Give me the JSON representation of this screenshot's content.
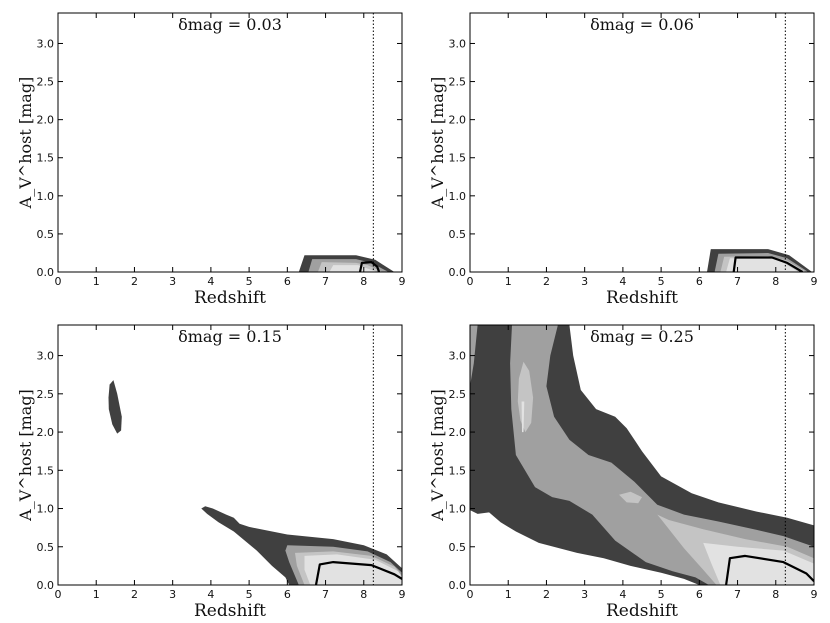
{
  "colors": {
    "level1": "#404040",
    "level2": "#a0a0a0",
    "level3": "#c4c4c4",
    "level4": "#e2e2e2",
    "contour": "#000000"
  },
  "chart_data": [
    {
      "type": "contour",
      "title": "δmag = 0.03",
      "xlabel": "Redshift",
      "ylabel": "A_V^host [mag]",
      "xlim": [
        0,
        9
      ],
      "ylim": [
        0,
        3.4
      ],
      "xticks": [
        "0",
        "1",
        "2",
        "3",
        "4",
        "5",
        "6",
        "7",
        "8",
        "9"
      ],
      "yticks": [
        "0.0",
        "0.5",
        "1.0",
        "1.5",
        "2.0",
        "2.5",
        "3.0"
      ],
      "reference_redshift": 8.25,
      "regions": [
        {
          "level": 1,
          "points": [
            [
              6.3,
              0
            ],
            [
              6.45,
              0.22
            ],
            [
              7.8,
              0.22
            ],
            [
              8.3,
              0.16
            ],
            [
              8.8,
              0
            ]
          ]
        },
        {
          "level": 2,
          "points": [
            [
              6.55,
              0
            ],
            [
              6.65,
              0.17
            ],
            [
              7.8,
              0.17
            ],
            [
              8.2,
              0.12
            ],
            [
              8.65,
              0
            ]
          ]
        },
        {
          "level": 3,
          "points": [
            [
              6.8,
              0
            ],
            [
              6.9,
              0.13
            ],
            [
              7.8,
              0.12
            ],
            [
              8.1,
              0.09
            ],
            [
              8.5,
              0
            ]
          ]
        },
        {
          "level": 4,
          "points": [
            [
              7.1,
              0
            ],
            [
              7.2,
              0.09
            ],
            [
              7.85,
              0.09
            ],
            [
              8.35,
              0
            ]
          ]
        }
      ],
      "contour": [
        [
          7.9,
          0
        ],
        [
          7.95,
          0.12
        ],
        [
          8.2,
          0.13
        ],
        [
          8.35,
          0.07
        ],
        [
          8.4,
          0
        ]
      ]
    },
    {
      "type": "contour",
      "title": "δmag = 0.06",
      "xlabel": "Redshift",
      "ylabel": "A_V^host [mag]",
      "xlim": [
        0,
        9
      ],
      "ylim": [
        0,
        3.4
      ],
      "xticks": [
        "0",
        "1",
        "2",
        "3",
        "4",
        "5",
        "6",
        "7",
        "8",
        "9"
      ],
      "yticks": [
        "0.0",
        "0.5",
        "1.0",
        "1.5",
        "2.0",
        "2.5",
        "3.0"
      ],
      "reference_redshift": 8.25,
      "regions": [
        {
          "level": 1,
          "points": [
            [
              6.2,
              0
            ],
            [
              6.3,
              0.3
            ],
            [
              7.8,
              0.3
            ],
            [
              8.35,
              0.22
            ],
            [
              8.95,
              0
            ]
          ]
        },
        {
          "level": 2,
          "points": [
            [
              6.4,
              0
            ],
            [
              6.5,
              0.24
            ],
            [
              7.8,
              0.25
            ],
            [
              8.3,
              0.18
            ],
            [
              8.85,
              0
            ]
          ]
        },
        {
          "level": 3,
          "points": [
            [
              6.55,
              0
            ],
            [
              6.65,
              0.2
            ],
            [
              7.8,
              0.21
            ],
            [
              8.3,
              0.15
            ],
            [
              8.8,
              0
            ]
          ]
        },
        {
          "level": 4,
          "points": [
            [
              6.7,
              0
            ],
            [
              6.8,
              0.18
            ],
            [
              8.0,
              0.18
            ],
            [
              8.6,
              0
            ]
          ]
        }
      ],
      "contour": [
        [
          6.9,
          0
        ],
        [
          6.95,
          0.19
        ],
        [
          7.9,
          0.19
        ],
        [
          8.3,
          0.12
        ],
        [
          8.7,
          0
        ]
      ]
    },
    {
      "type": "contour",
      "title": "δmag = 0.15",
      "xlabel": "Redshift",
      "ylabel": "A_V^host [mag]",
      "xlim": [
        0,
        9
      ],
      "ylim": [
        0,
        3.4
      ],
      "xticks": [
        "0",
        "1",
        "2",
        "3",
        "4",
        "5",
        "6",
        "7",
        "8",
        "9"
      ],
      "yticks": [
        "0.0",
        "0.5",
        "1.0",
        "1.5",
        "2.0",
        "2.5",
        "3.0"
      ],
      "reference_redshift": 8.25,
      "regions": [
        {
          "level": 1,
          "points": [
            [
              1.32,
              2.45
            ],
            [
              1.35,
              2.62
            ],
            [
              1.45,
              2.68
            ],
            [
              1.55,
              2.5
            ],
            [
              1.67,
              2.2
            ],
            [
              1.65,
              2.02
            ],
            [
              1.55,
              1.98
            ],
            [
              1.42,
              2.1
            ],
            [
              1.33,
              2.3
            ]
          ]
        },
        {
          "level": 1,
          "points": [
            [
              3.75,
              1.0
            ],
            [
              3.85,
              1.03
            ],
            [
              4.05,
              1.0
            ],
            [
              4.4,
              0.92
            ],
            [
              4.6,
              0.88
            ],
            [
              4.75,
              0.8
            ],
            [
              5.0,
              0.76
            ],
            [
              6.0,
              0.66
            ],
            [
              7.2,
              0.6
            ],
            [
              8.0,
              0.52
            ],
            [
              8.6,
              0.4
            ],
            [
              9.0,
              0.22
            ],
            [
              9,
              0
            ],
            [
              6.05,
              0
            ],
            [
              5.95,
              0.1
            ],
            [
              5.6,
              0.25
            ],
            [
              5.2,
              0.45
            ],
            [
              4.6,
              0.7
            ],
            [
              4.2,
              0.82
            ],
            [
              3.9,
              0.93
            ]
          ]
        },
        {
          "level": 2,
          "points": [
            [
              5.95,
              0.45
            ],
            [
              6.0,
              0.52
            ],
            [
              7.2,
              0.5
            ],
            [
              8.1,
              0.44
            ],
            [
              8.7,
              0.3
            ],
            [
              9.0,
              0.16
            ],
            [
              9,
              0
            ],
            [
              6.3,
              0
            ],
            [
              6.05,
              0.3
            ]
          ]
        },
        {
          "level": 3,
          "points": [
            [
              6.2,
              0.42
            ],
            [
              7.2,
              0.44
            ],
            [
              8.2,
              0.38
            ],
            [
              8.8,
              0.24
            ],
            [
              9.0,
              0.12
            ],
            [
              9,
              0
            ],
            [
              6.45,
              0
            ],
            [
              6.25,
              0.25
            ]
          ]
        },
        {
          "level": 4,
          "points": [
            [
              6.45,
              0.38
            ],
            [
              7.3,
              0.4
            ],
            [
              8.3,
              0.33
            ],
            [
              8.9,
              0.18
            ],
            [
              9,
              0.1
            ],
            [
              9,
              0
            ],
            [
              6.6,
              0
            ],
            [
              6.45,
              0.2
            ]
          ]
        }
      ],
      "contour": [
        [
          6.75,
          0
        ],
        [
          6.85,
          0.27
        ],
        [
          7.2,
          0.3
        ],
        [
          8.2,
          0.26
        ],
        [
          8.8,
          0.14
        ],
        [
          9.0,
          0.08
        ]
      ]
    },
    {
      "type": "contour",
      "title": "δmag = 0.25",
      "xlabel": "Redshift",
      "ylabel": "A_V^host [mag]",
      "xlim": [
        0,
        9
      ],
      "ylim": [
        0,
        3.4
      ],
      "xticks": [
        "0",
        "1",
        "2",
        "3",
        "4",
        "5",
        "6",
        "7",
        "8",
        "9"
      ],
      "yticks": [
        "0.0",
        "0.5",
        "1.0",
        "1.5",
        "2.0",
        "2.5",
        "3.0"
      ],
      "reference_redshift": 8.25,
      "regions": [
        {
          "level": 1,
          "points": [
            [
              0,
              3.4
            ],
            [
              2.6,
              3.4
            ],
            [
              2.7,
              3.0
            ],
            [
              2.9,
              2.55
            ],
            [
              3.3,
              2.3
            ],
            [
              3.8,
              2.2
            ],
            [
              4.1,
              2.05
            ],
            [
              4.5,
              1.75
            ],
            [
              5.0,
              1.42
            ],
            [
              5.8,
              1.2
            ],
            [
              6.5,
              1.08
            ],
            [
              7.5,
              0.96
            ],
            [
              8.3,
              0.88
            ],
            [
              9,
              0.78
            ],
            [
              9,
              0
            ],
            [
              6.0,
              0
            ],
            [
              5.6,
              0.08
            ],
            [
              5.0,
              0.16
            ],
            [
              4.2,
              0.25
            ],
            [
              3.5,
              0.35
            ],
            [
              2.8,
              0.42
            ],
            [
              1.8,
              0.55
            ],
            [
              1.2,
              0.7
            ],
            [
              0.8,
              0.82
            ],
            [
              0.5,
              0.95
            ],
            [
              0.2,
              0.93
            ],
            [
              0,
              0.98
            ]
          ]
        },
        {
          "level": 2,
          "points": [
            [
              0,
              3.4
            ],
            [
              0.2,
              3.4
            ],
            [
              0.1,
              2.9
            ],
            [
              0,
              2.6
            ]
          ]
        },
        {
          "level": 2,
          "points": [
            [
              1.1,
              3.4
            ],
            [
              2.3,
              3.4
            ],
            [
              2.1,
              3.0
            ],
            [
              2.0,
              2.6
            ],
            [
              2.2,
              2.2
            ],
            [
              2.6,
              1.9
            ],
            [
              3.1,
              1.7
            ],
            [
              3.7,
              1.6
            ],
            [
              4.3,
              1.35
            ],
            [
              4.9,
              1.05
            ],
            [
              5.6,
              0.92
            ],
            [
              6.5,
              0.83
            ],
            [
              7.5,
              0.72
            ],
            [
              8.2,
              0.64
            ],
            [
              9,
              0.5
            ],
            [
              9,
              0
            ],
            [
              6.25,
              0
            ],
            [
              5.9,
              0.1
            ],
            [
              5.3,
              0.18
            ],
            [
              4.6,
              0.3
            ],
            [
              3.8,
              0.58
            ],
            [
              3.2,
              0.92
            ],
            [
              2.6,
              1.1
            ],
            [
              2.15,
              1.15
            ],
            [
              1.7,
              1.28
            ],
            [
              1.2,
              1.7
            ],
            [
              1.08,
              2.3
            ],
            [
              1.05,
              2.9
            ]
          ]
        },
        {
          "level": 3,
          "points": [
            [
              1.28,
              2.7
            ],
            [
              1.4,
              2.92
            ],
            [
              1.55,
              2.8
            ],
            [
              1.65,
              2.45
            ],
            [
              1.6,
              2.12
            ],
            [
              1.45,
              2.0
            ],
            [
              1.32,
              2.15
            ],
            [
              1.25,
              2.4
            ]
          ]
        },
        {
          "level": 3,
          "points": [
            [
              3.9,
              1.18
            ],
            [
              4.2,
              1.22
            ],
            [
              4.5,
              1.15
            ],
            [
              4.4,
              1.07
            ],
            [
              4.1,
              1.08
            ]
          ]
        },
        {
          "level": 3,
          "points": [
            [
              4.9,
              0.92
            ],
            [
              5.2,
              0.85
            ],
            [
              6.1,
              0.73
            ],
            [
              7.2,
              0.6
            ],
            [
              8.3,
              0.5
            ],
            [
              9,
              0.35
            ],
            [
              9,
              0
            ],
            [
              6.45,
              0
            ],
            [
              6.1,
              0.2
            ],
            [
              5.6,
              0.48
            ],
            [
              5.0,
              0.86
            ]
          ]
        },
        {
          "level": 4,
          "points": [
            [
              6.1,
              0.55
            ],
            [
              7.0,
              0.5
            ],
            [
              8.2,
              0.45
            ],
            [
              9,
              0.28
            ],
            [
              9,
              0
            ],
            [
              6.55,
              0
            ],
            [
              6.3,
              0.3
            ]
          ]
        },
        {
          "level": 4,
          "points": [
            [
              1.35,
              2.4
            ],
            [
              1.36,
              2.0
            ],
            [
              1.4,
              2.0
            ],
            [
              1.42,
              2.4
            ]
          ]
        }
      ],
      "contour": [
        [
          6.7,
          0
        ],
        [
          6.8,
          0.35
        ],
        [
          7.2,
          0.38
        ],
        [
          8.2,
          0.3
        ],
        [
          8.8,
          0.15
        ],
        [
          9.0,
          0.05
        ]
      ]
    }
  ]
}
